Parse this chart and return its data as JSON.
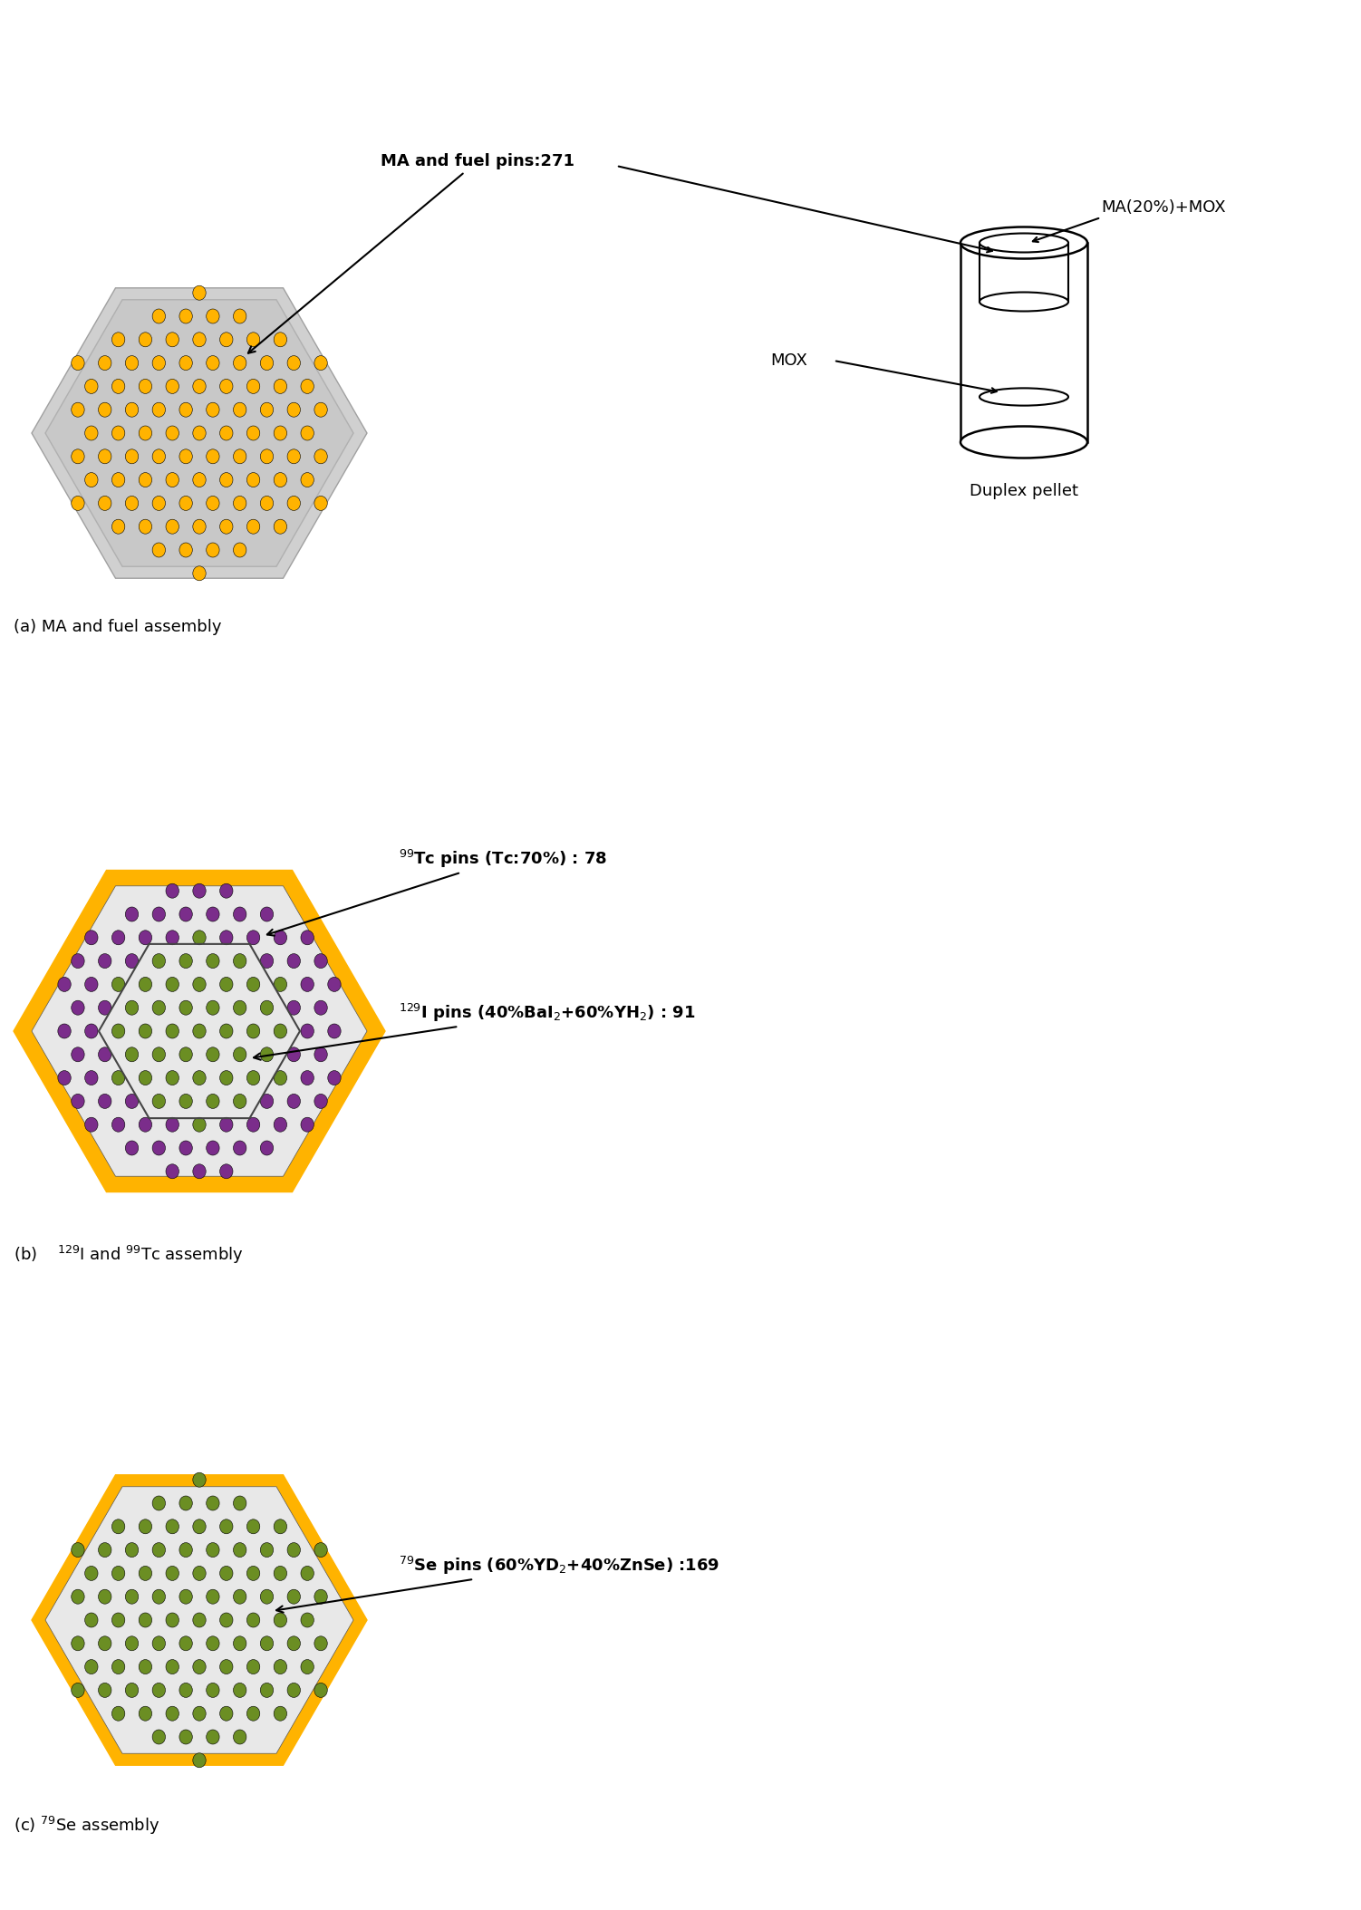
{
  "bg_color": "#ffffff",
  "gold_color": "#FFB300",
  "purple_color": "#7B2D8B",
  "green_color": "#6B8E23",
  "gray_light": "#d8d8d8",
  "gray_border": "#a0a0a0",
  "panel_a_label": "(a) MA and fuel assembly",
  "annotation_a": "MA and fuel pins:271",
  "annotation_b1": "$^{99}$Tc pins (Tc:70%) : 78",
  "annotation_b2": "$^{129}$I pins (40%BaI$_2$+60%YH$_2$) : 91",
  "annotation_c": "$^{79}$Se pins (60%YD$_2$+40%ZnSe) :169",
  "duplex_label": "Duplex pellet",
  "ma_mox_label": "MA(20%)+MOX",
  "mox_label": "MOX"
}
